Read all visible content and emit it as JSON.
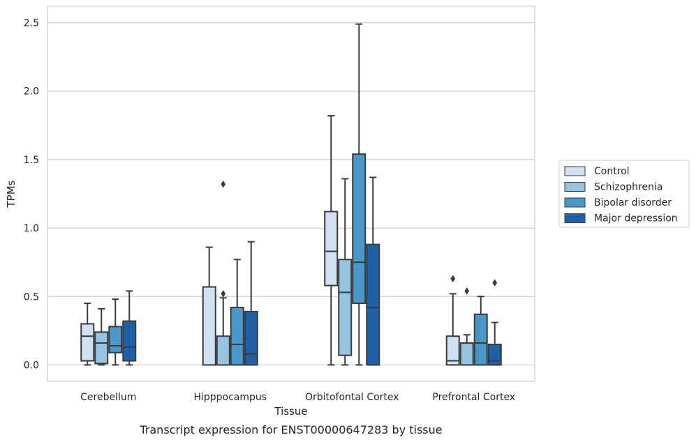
{
  "chart_data": {
    "type": "box",
    "title": "",
    "caption": "Transcript expression for ENST00000647283 by tissue",
    "xlabel": "Tissue",
    "ylabel": "TPMs",
    "ylim": [
      -0.12,
      2.62
    ],
    "yticks": [
      0.0,
      0.5,
      1.0,
      1.5,
      2.0,
      2.5
    ],
    "ytick_labels": [
      "0.0",
      "0.5",
      "1.0",
      "1.5",
      "2.0",
      "2.5"
    ],
    "grid": "horizontal",
    "legend_position": "right",
    "categories": [
      "Cerebellum",
      "Hipppocampus",
      "Orbitofontal Cortex",
      "Prefrontal Cortex"
    ],
    "series": [
      {
        "name": "Control",
        "color": "#d0e1f2",
        "boxes": [
          {
            "whisker_low": 0.0,
            "q1": 0.03,
            "median": 0.21,
            "q3": 0.3,
            "whisker_high": 0.45,
            "outliers": []
          },
          {
            "whisker_low": 0.0,
            "q1": 0.0,
            "median": 0.0,
            "q3": 0.57,
            "whisker_high": 0.86,
            "outliers": []
          },
          {
            "whisker_low": 0.0,
            "q1": 0.58,
            "median": 0.83,
            "q3": 1.12,
            "whisker_high": 1.82,
            "outliers": []
          },
          {
            "whisker_low": 0.0,
            "q1": 0.0,
            "median": 0.03,
            "q3": 0.21,
            "whisker_high": 0.52,
            "outliers": [
              0.63
            ]
          }
        ]
      },
      {
        "name": "Schizophrenia",
        "color": "#94c4df",
        "boxes": [
          {
            "whisker_low": 0.0,
            "q1": 0.01,
            "median": 0.16,
            "q3": 0.24,
            "whisker_high": 0.41,
            "outliers": []
          },
          {
            "whisker_low": 0.0,
            "q1": 0.0,
            "median": 0.0,
            "q3": 0.21,
            "whisker_high": 0.49,
            "outliers": [
              1.32,
              0.52
            ]
          },
          {
            "whisker_low": 0.0,
            "q1": 0.07,
            "median": 0.53,
            "q3": 0.77,
            "whisker_high": 1.36,
            "outliers": []
          },
          {
            "whisker_low": 0.0,
            "q1": 0.0,
            "median": 0.0,
            "q3": 0.16,
            "whisker_high": 0.22,
            "outliers": [
              0.54
            ]
          }
        ]
      },
      {
        "name": "Bipolar disorder",
        "color": "#4a98c9",
        "boxes": [
          {
            "whisker_low": 0.0,
            "q1": 0.09,
            "median": 0.14,
            "q3": 0.28,
            "whisker_high": 0.48,
            "outliers": []
          },
          {
            "whisker_low": 0.0,
            "q1": 0.0,
            "median": 0.15,
            "q3": 0.42,
            "whisker_high": 0.77,
            "outliers": []
          },
          {
            "whisker_low": 0.0,
            "q1": 0.45,
            "median": 0.75,
            "q3": 1.54,
            "whisker_high": 2.49,
            "outliers": []
          },
          {
            "whisker_low": 0.0,
            "q1": 0.0,
            "median": 0.16,
            "q3": 0.37,
            "whisker_high": 0.5,
            "outliers": []
          }
        ]
      },
      {
        "name": "Major depression",
        "color": "#2060a8",
        "boxes": [
          {
            "whisker_low": 0.0,
            "q1": 0.03,
            "median": 0.13,
            "q3": 0.32,
            "whisker_high": 0.54,
            "outliers": []
          },
          {
            "whisker_low": 0.0,
            "q1": 0.0,
            "median": 0.08,
            "q3": 0.39,
            "whisker_high": 0.9,
            "outliers": []
          },
          {
            "whisker_low": 0.0,
            "q1": 0.0,
            "median": 0.42,
            "q3": 0.88,
            "whisker_high": 1.37,
            "outliers": []
          },
          {
            "whisker_low": 0.0,
            "q1": 0.0,
            "median": 0.03,
            "q3": 0.15,
            "whisker_high": 0.31,
            "outliers": [
              0.6
            ]
          }
        ]
      }
    ]
  }
}
